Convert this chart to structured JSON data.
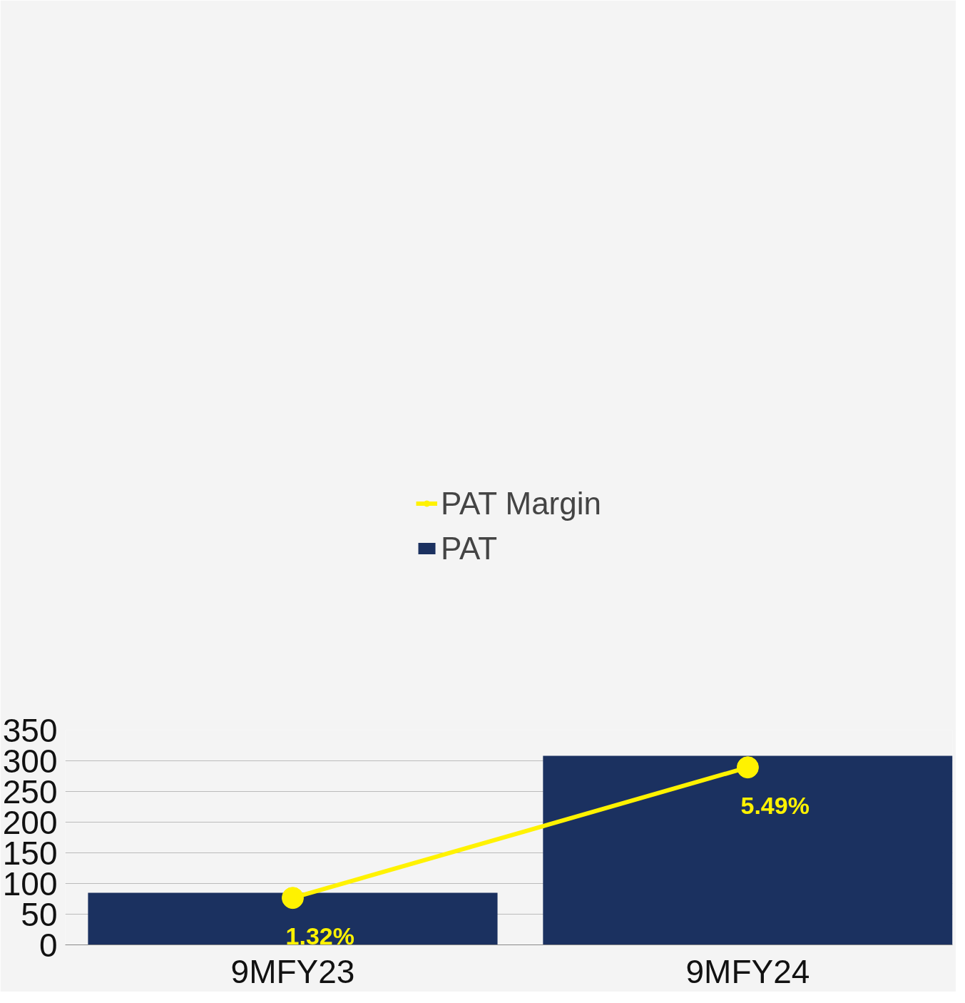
{
  "chart_data": {
    "type": "bar",
    "categories": [
      "9MFY23",
      "9MFY24"
    ],
    "series": [
      {
        "name": "PAT",
        "color": "#1b3160",
        "values": [
          85,
          308
        ]
      },
      {
        "name": "PAT Margin",
        "type": "line",
        "axis": "y2",
        "color": "#fff200",
        "marker": "circle",
        "values": [
          1.32,
          5.49
        ],
        "value_labels": [
          "1.32%",
          "5.49%"
        ]
      }
    ],
    "ylim": [
      0,
      350
    ],
    "yticks": [
      0,
      50,
      100,
      150,
      200,
      250,
      300,
      350
    ],
    "y2lim": [
      -0.18,
      6.68
    ],
    "tick_labels": "y",
    "grid": "y",
    "legend": "top"
  }
}
